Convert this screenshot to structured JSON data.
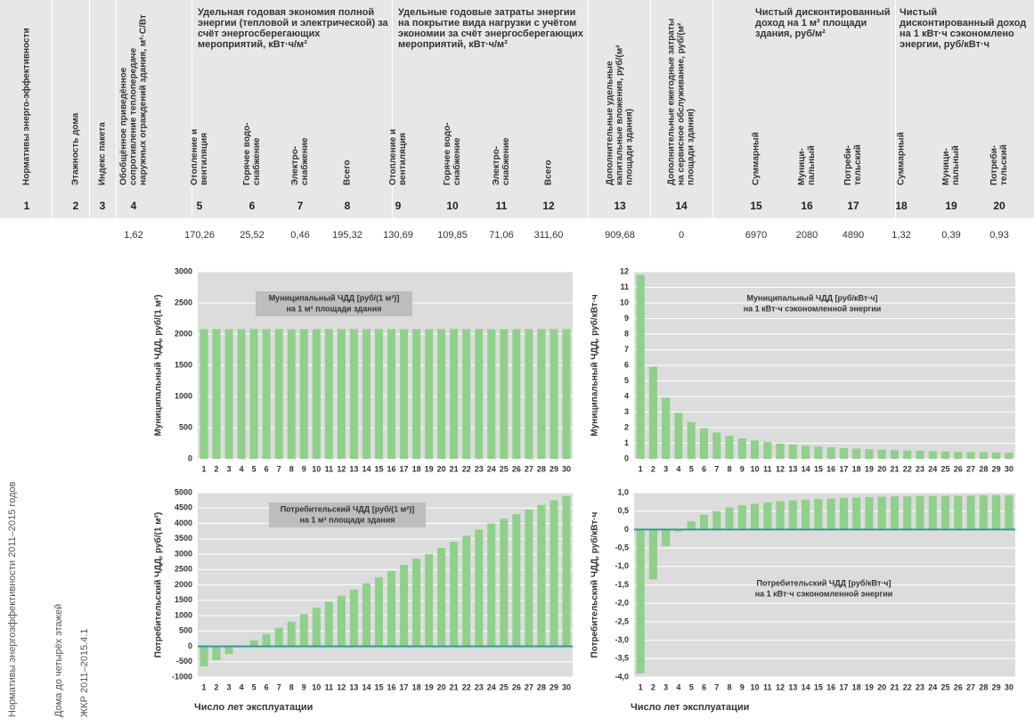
{
  "side_labels": [
    "Нормативы энергоэффективности 2011–2015 годов",
    "Дома до четырёх этажей",
    "ЖКР 2011–2015.4.1"
  ],
  "table": {
    "groups": [
      {
        "label": "Удельная годовая экономия полной энергии (тепловой и электрической) за счёт энергосберегающих мероприятий, кВт·ч/м²"
      },
      {
        "label": "Удельные годовые затраты энергии на покрытие вида нагрузки с учётом экономии за счёт энергосберегающих мероприятий, кВт·ч/м²"
      },
      {
        "label": "Чистый дисконтированный доход на 1 м² площади здания, руб/м²"
      },
      {
        "label": "Чистый дисконтированный доход на 1 кВт·ч сэкономлено энергии, руб/кВт·ч"
      }
    ],
    "columns": [
      {
        "number": "1",
        "label": "Нормативы энерго-эффективности"
      },
      {
        "number": "2",
        "label": "Этажность дома"
      },
      {
        "number": "3",
        "label": "Индекс пакета"
      },
      {
        "number": "4",
        "label": "Обобщённое приведённое сопротивление теплопередаче наружных ограждений здания, м²·С/Вт",
        "value": "1,62"
      },
      {
        "number": "5",
        "label": "Отопление и вентиляция",
        "value": "170,26"
      },
      {
        "number": "6",
        "label": "Горячее водо-снабжение",
        "value": "25,52"
      },
      {
        "number": "7",
        "label": "Электро-снабжение",
        "value": "0,46"
      },
      {
        "number": "8",
        "label": "Всего",
        "value": "195,32"
      },
      {
        "number": "9",
        "label": "Отопление и вентиляция",
        "value": "130,69"
      },
      {
        "number": "10",
        "label": "Горячее водо-снабжение",
        "value": "109,85"
      },
      {
        "number": "11",
        "label": "Электро-снабжение",
        "value": "71,06"
      },
      {
        "number": "12",
        "label": "Всего",
        "value": "311,60"
      },
      {
        "number": "13",
        "label": "Дополнительные удельные капитальные вложения, руб/(м² площади здания)",
        "value": "909,68"
      },
      {
        "number": "14",
        "label": "Дополнительные ежегодные затраты на сервисное обслуживание, руб/(м² площади здания)",
        "value": "0"
      },
      {
        "number": "15",
        "label": "Суммарный",
        "value": "6970"
      },
      {
        "number": "16",
        "label": "Муници-пальный",
        "value": "2080"
      },
      {
        "number": "17",
        "label": "Потреби-тельский",
        "value": "4890"
      },
      {
        "number": "18",
        "label": "Суммарный",
        "value": "1,32"
      },
      {
        "number": "19",
        "label": "Муници-пальный",
        "value": "0,39"
      },
      {
        "number": "20",
        "label": "Потреби-тельский",
        "value": "0,93"
      }
    ]
  },
  "chart_data": [
    {
      "type": "bar",
      "ylabel": "Муниципальный ЧДД, руб/(1 м²)",
      "annotation": [
        "Муниципальный ЧДД [руб/(1 м²)]",
        "на 1 м² площади здания"
      ],
      "categories": [
        1,
        2,
        3,
        4,
        5,
        6,
        7,
        8,
        9,
        10,
        11,
        12,
        13,
        14,
        15,
        16,
        17,
        18,
        19,
        20,
        21,
        22,
        23,
        24,
        25,
        26,
        27,
        28,
        29,
        30
      ],
      "values": [
        2080,
        2080,
        2080,
        2080,
        2080,
        2080,
        2080,
        2080,
        2080,
        2080,
        2080,
        2080,
        2080,
        2080,
        2080,
        2080,
        2080,
        2080,
        2080,
        2080,
        2080,
        2080,
        2080,
        2080,
        2080,
        2080,
        2080,
        2080,
        2080,
        2080
      ],
      "color": "#8fd08a",
      "ylim": [
        0,
        3000
      ],
      "yticks": [
        0,
        500,
        1000,
        1500,
        2000,
        2500,
        3000
      ],
      "grid": true
    },
    {
      "type": "bar",
      "ylabel": "Муниципальный ЧДД, руб/кВт·ч",
      "annotation": [
        "Муниципальный ЧДД [руб/кВт·ч]",
        "на 1 кВт·ч сэкономленной энергии"
      ],
      "categories": [
        1,
        2,
        3,
        4,
        5,
        6,
        7,
        8,
        9,
        10,
        11,
        12,
        13,
        14,
        15,
        16,
        17,
        18,
        19,
        20,
        21,
        22,
        23,
        24,
        25,
        26,
        27,
        28,
        29,
        30
      ],
      "values": [
        11.8,
        5.9,
        3.93,
        2.95,
        2.36,
        1.97,
        1.69,
        1.48,
        1.31,
        1.18,
        1.07,
        0.98,
        0.91,
        0.84,
        0.79,
        0.74,
        0.69,
        0.66,
        0.62,
        0.59,
        0.56,
        0.54,
        0.51,
        0.49,
        0.47,
        0.45,
        0.44,
        0.42,
        0.41,
        0.39
      ],
      "color": "#8fd08a",
      "ylim": [
        0,
        12
      ],
      "yticks": [
        0,
        1,
        2,
        3,
        4,
        5,
        6,
        7,
        8,
        9,
        10,
        11,
        12
      ],
      "grid": true
    },
    {
      "type": "bar",
      "ylabel": "Потребительский ЧДД, руб/(1 м²)",
      "xlabel": "Число лет эксплуатации",
      "annotation": [
        "Потребительский ЧДД [руб/(1 м²)]",
        "на 1 м² площади здания"
      ],
      "categories": [
        1,
        2,
        3,
        4,
        5,
        6,
        7,
        8,
        9,
        10,
        11,
        12,
        13,
        14,
        15,
        16,
        17,
        18,
        19,
        20,
        21,
        22,
        23,
        24,
        25,
        26,
        27,
        28,
        29,
        30
      ],
      "values": [
        -650,
        -450,
        -250,
        -30,
        200,
        400,
        600,
        800,
        1050,
        1250,
        1450,
        1650,
        1850,
        2050,
        2250,
        2450,
        2650,
        2850,
        3000,
        3200,
        3400,
        3600,
        3800,
        4000,
        4150,
        4300,
        4450,
        4600,
        4750,
        4890
      ],
      "color": "#8fd08a",
      "zero_line": "#2a9d9d",
      "ylim": [
        -1000,
        5000
      ],
      "yticks": [
        -1000,
        -500,
        0,
        500,
        1000,
        1500,
        2000,
        2500,
        3000,
        3500,
        4000,
        4500,
        5000
      ],
      "grid": true
    },
    {
      "type": "bar",
      "ylabel": "Потребительский ЧДД, руб/кВт·ч",
      "xlabel": "Число лет эксплуатации",
      "annotation": [
        "Потребительский ЧДД [руб/кВт·ч]",
        "на 1 кВт·ч сэкономленной энергии"
      ],
      "categories": [
        1,
        2,
        3,
        4,
        5,
        6,
        7,
        8,
        9,
        10,
        11,
        12,
        13,
        14,
        15,
        16,
        17,
        18,
        19,
        20,
        21,
        22,
        23,
        24,
        25,
        26,
        27,
        28,
        29,
        30
      ],
      "values": [
        -3.9,
        -1.35,
        -0.45,
        -0.05,
        0.22,
        0.4,
        0.5,
        0.6,
        0.66,
        0.7,
        0.74,
        0.77,
        0.79,
        0.81,
        0.83,
        0.84,
        0.86,
        0.87,
        0.88,
        0.89,
        0.9,
        0.9,
        0.91,
        0.91,
        0.92,
        0.92,
        0.92,
        0.93,
        0.93,
        0.93
      ],
      "color": "#8fd08a",
      "zero_line": "#2a9d9d",
      "ylim": [
        -4,
        1
      ],
      "yticks": [
        {
          "value": -4,
          "label": "-4,0"
        },
        {
          "value": -3.5,
          "label": "-3,5"
        },
        {
          "value": -3,
          "label": "-3,0"
        },
        {
          "value": -2.5,
          "label": "-2,5"
        },
        {
          "value": -2,
          "label": "-2,0"
        },
        {
          "value": -1.5,
          "label": "-1,5"
        },
        {
          "value": -1,
          "label": "-1,0"
        },
        {
          "value": -0.5,
          "label": "-0,5"
        },
        0,
        {
          "value": 0.5,
          "label": "0,5"
        },
        {
          "value": 1,
          "label": "1,0"
        }
      ],
      "grid": true
    }
  ]
}
